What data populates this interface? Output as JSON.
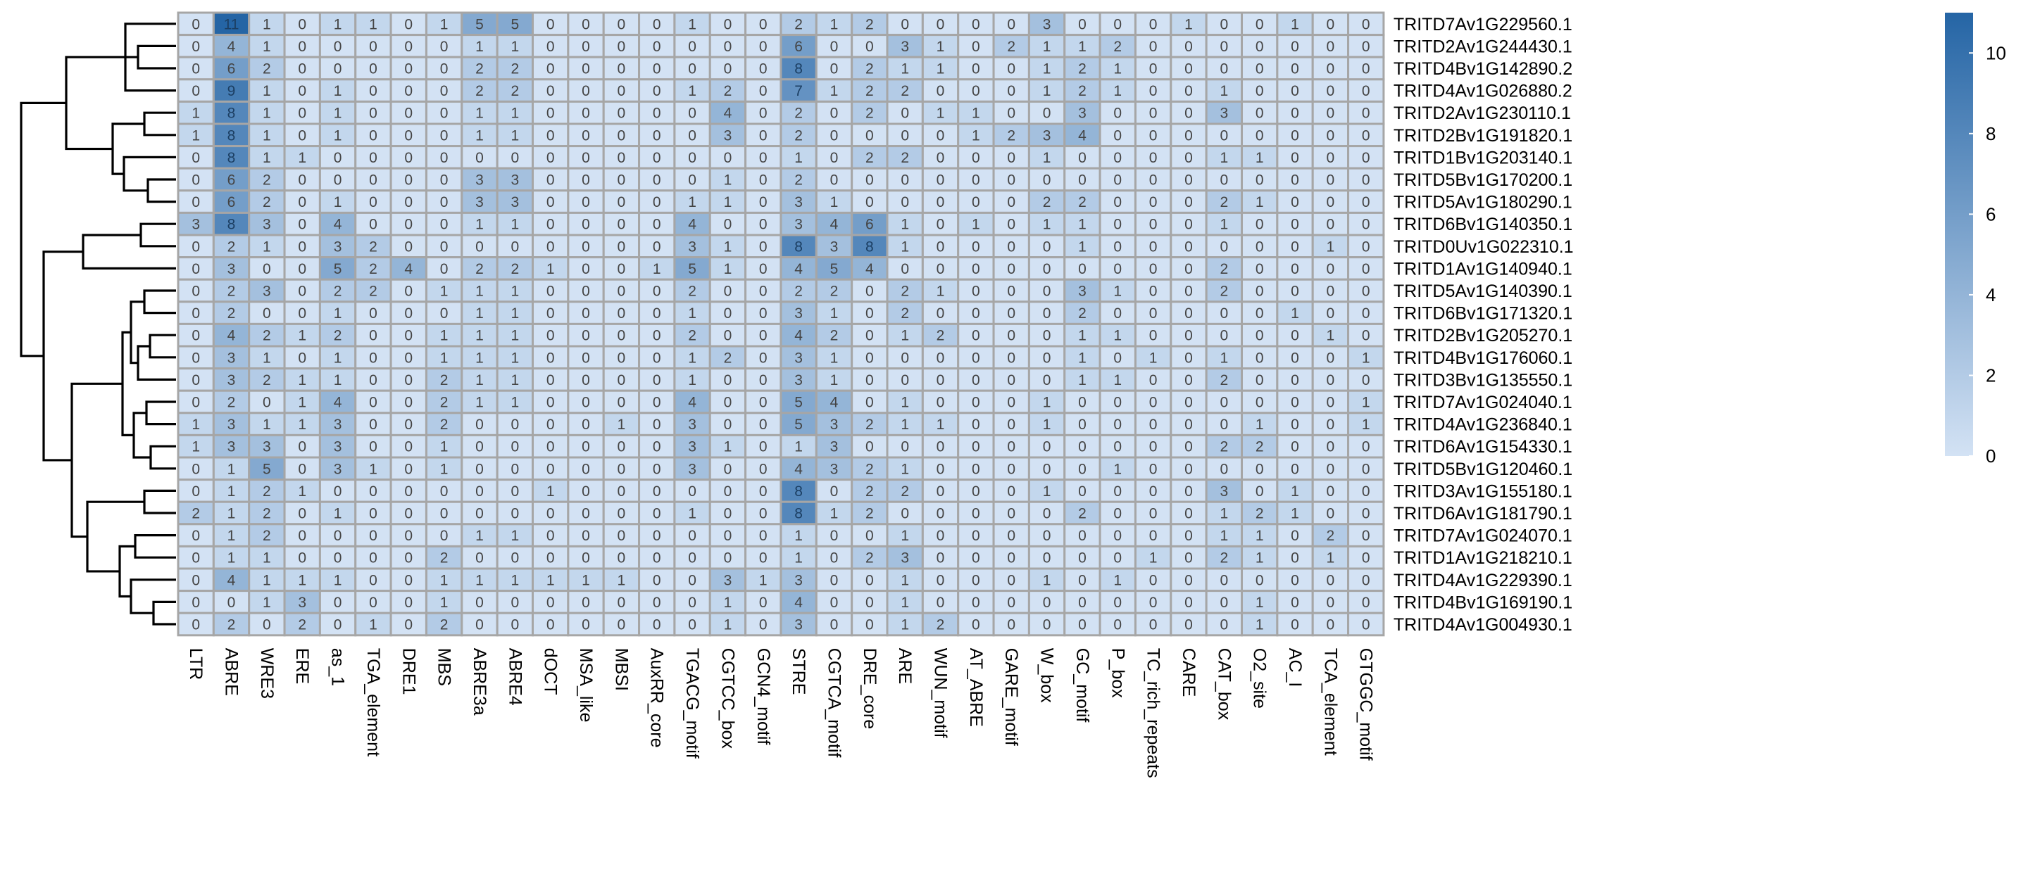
{
  "chart_data": {
    "type": "heatmap",
    "columns": [
      "LTR",
      "ABRE",
      "WRE3",
      "ERE",
      "as_1",
      "TGA_element",
      "DRE1",
      "MBS",
      "ABRE3a",
      "ABRE4",
      "dOCT",
      "MSA_like",
      "MBSI",
      "AuxRR_core",
      "TGACG_motif",
      "CGTCC_box",
      "GCN4_motif",
      "STRE",
      "CGTCA_motif",
      "DRE_core",
      "ARE",
      "WUN_motif",
      "AT_ABRE",
      "GARE_motif",
      "W_box",
      "GC_motif",
      "P_box",
      "TC_rich_repeats",
      "CARE",
      "CAT_box",
      "O2_site",
      "AC_I",
      "TCA_element",
      "GTGGC_motif"
    ],
    "rows": [
      {
        "gene": "TRITD7Av1G229560.1",
        "values": [
          0,
          11,
          1,
          0,
          1,
          1,
          0,
          1,
          5,
          5,
          0,
          0,
          0,
          0,
          1,
          0,
          0,
          2,
          1,
          2,
          0,
          0,
          0,
          0,
          3,
          0,
          0,
          0,
          1,
          0,
          0,
          1,
          0,
          0
        ]
      },
      {
        "gene": "TRITD2Av1G244430.1",
        "values": [
          0,
          4,
          1,
          0,
          0,
          0,
          0,
          0,
          1,
          1,
          0,
          0,
          0,
          0,
          0,
          0,
          0,
          6,
          0,
          0,
          3,
          1,
          0,
          2,
          1,
          1,
          2,
          0,
          0,
          0,
          0,
          0,
          0,
          0
        ]
      },
      {
        "gene": "TRITD4Bv1G142890.2",
        "values": [
          0,
          6,
          2,
          0,
          0,
          0,
          0,
          0,
          2,
          2,
          0,
          0,
          0,
          0,
          0,
          0,
          0,
          8,
          0,
          2,
          1,
          1,
          0,
          0,
          1,
          2,
          1,
          0,
          0,
          0,
          0,
          0,
          0,
          0
        ]
      },
      {
        "gene": "TRITD4Av1G026880.2",
        "values": [
          0,
          9,
          1,
          0,
          1,
          0,
          0,
          0,
          2,
          2,
          0,
          0,
          0,
          0,
          1,
          2,
          0,
          7,
          1,
          2,
          2,
          0,
          0,
          0,
          1,
          2,
          1,
          0,
          0,
          1,
          0,
          0,
          0,
          0
        ]
      },
      {
        "gene": "TRITD2Av1G230110.1",
        "values": [
          1,
          8,
          1,
          0,
          1,
          0,
          0,
          0,
          1,
          1,
          0,
          0,
          0,
          0,
          0,
          4,
          0,
          2,
          0,
          2,
          0,
          1,
          1,
          0,
          0,
          3,
          0,
          0,
          0,
          3,
          0,
          0,
          0,
          0
        ]
      },
      {
        "gene": "TRITD2Bv1G191820.1",
        "values": [
          1,
          8,
          1,
          0,
          1,
          0,
          0,
          0,
          1,
          1,
          0,
          0,
          0,
          0,
          0,
          3,
          0,
          2,
          0,
          0,
          0,
          0,
          1,
          2,
          3,
          4,
          0,
          0,
          0,
          0,
          0,
          0,
          0,
          0
        ]
      },
      {
        "gene": "TRITD1Bv1G203140.1",
        "values": [
          0,
          8,
          1,
          1,
          0,
          0,
          0,
          0,
          0,
          0,
          0,
          0,
          0,
          0,
          0,
          0,
          0,
          1,
          0,
          2,
          2,
          0,
          0,
          0,
          1,
          0,
          0,
          0,
          0,
          1,
          1,
          0,
          0,
          0
        ]
      },
      {
        "gene": "TRITD5Bv1G170200.1",
        "values": [
          0,
          6,
          2,
          0,
          0,
          0,
          0,
          0,
          3,
          3,
          0,
          0,
          0,
          0,
          0,
          1,
          0,
          2,
          0,
          0,
          0,
          0,
          0,
          0,
          0,
          0,
          0,
          0,
          0,
          0,
          0,
          0,
          0,
          0
        ]
      },
      {
        "gene": "TRITD5Av1G180290.1",
        "values": [
          0,
          6,
          2,
          0,
          1,
          0,
          0,
          0,
          3,
          3,
          0,
          0,
          0,
          0,
          1,
          1,
          0,
          3,
          1,
          0,
          0,
          0,
          0,
          0,
          2,
          2,
          0,
          0,
          0,
          2,
          1,
          0,
          0,
          0
        ]
      },
      {
        "gene": "TRITD6Bv1G140350.1",
        "values": [
          3,
          8,
          3,
          0,
          4,
          0,
          0,
          0,
          1,
          1,
          0,
          0,
          0,
          0,
          4,
          0,
          0,
          3,
          4,
          6,
          1,
          0,
          1,
          0,
          1,
          1,
          0,
          0,
          0,
          1,
          0,
          0,
          0,
          0
        ]
      },
      {
        "gene": "TRITD0Uv1G022310.1",
        "values": [
          0,
          2,
          1,
          0,
          3,
          2,
          0,
          0,
          0,
          0,
          0,
          0,
          0,
          0,
          3,
          1,
          0,
          8,
          3,
          8,
          1,
          0,
          0,
          0,
          0,
          1,
          0,
          0,
          0,
          0,
          0,
          0,
          1,
          0
        ]
      },
      {
        "gene": "TRITD1Av1G140940.1",
        "values": [
          0,
          3,
          0,
          0,
          5,
          2,
          4,
          0,
          2,
          2,
          1,
          0,
          0,
          1,
          5,
          1,
          0,
          4,
          5,
          4,
          0,
          0,
          0,
          0,
          0,
          0,
          0,
          0,
          0,
          2,
          0,
          0,
          0,
          0
        ]
      },
      {
        "gene": "TRITD5Av1G140390.1",
        "values": [
          0,
          2,
          3,
          0,
          2,
          2,
          0,
          1,
          1,
          1,
          0,
          0,
          0,
          0,
          2,
          0,
          0,
          2,
          2,
          0,
          2,
          1,
          0,
          0,
          0,
          3,
          1,
          0,
          0,
          2,
          0,
          0,
          0,
          0
        ]
      },
      {
        "gene": "TRITD6Bv1G171320.1",
        "values": [
          0,
          2,
          0,
          0,
          1,
          0,
          0,
          0,
          1,
          1,
          0,
          0,
          0,
          0,
          1,
          0,
          0,
          3,
          1,
          0,
          2,
          0,
          0,
          0,
          0,
          2,
          0,
          0,
          0,
          0,
          0,
          1,
          0,
          0
        ]
      },
      {
        "gene": "TRITD2Bv1G205270.1",
        "values": [
          0,
          4,
          2,
          1,
          2,
          0,
          0,
          1,
          1,
          1,
          0,
          0,
          0,
          0,
          2,
          0,
          0,
          4,
          2,
          0,
          1,
          2,
          0,
          0,
          0,
          1,
          1,
          0,
          0,
          0,
          0,
          0,
          1,
          0
        ]
      },
      {
        "gene": "TRITD4Bv1G176060.1",
        "values": [
          0,
          3,
          1,
          0,
          1,
          0,
          0,
          1,
          1,
          1,
          0,
          0,
          0,
          0,
          1,
          2,
          0,
          3,
          1,
          0,
          0,
          0,
          0,
          0,
          0,
          1,
          0,
          1,
          0,
          1,
          0,
          0,
          0,
          1
        ]
      },
      {
        "gene": "TRITD3Bv1G135550.1",
        "values": [
          0,
          3,
          2,
          1,
          1,
          0,
          0,
          2,
          1,
          1,
          0,
          0,
          0,
          0,
          1,
          0,
          0,
          3,
          1,
          0,
          0,
          0,
          0,
          0,
          0,
          1,
          1,
          0,
          0,
          2,
          0,
          0,
          0,
          0
        ]
      },
      {
        "gene": "TRITD7Av1G024040.1",
        "values": [
          0,
          2,
          0,
          1,
          4,
          0,
          0,
          2,
          1,
          1,
          0,
          0,
          0,
          0,
          4,
          0,
          0,
          5,
          4,
          0,
          1,
          0,
          0,
          0,
          1,
          0,
          0,
          0,
          0,
          0,
          0,
          0,
          0,
          1
        ]
      },
      {
        "gene": "TRITD4Av1G236840.1",
        "values": [
          1,
          3,
          1,
          1,
          3,
          0,
          0,
          2,
          0,
          0,
          0,
          0,
          1,
          0,
          3,
          0,
          0,
          5,
          3,
          2,
          1,
          1,
          0,
          0,
          1,
          0,
          0,
          0,
          0,
          0,
          1,
          0,
          0,
          1
        ]
      },
      {
        "gene": "TRITD6Av1G154330.1",
        "values": [
          1,
          3,
          3,
          0,
          3,
          0,
          0,
          1,
          0,
          0,
          0,
          0,
          0,
          0,
          3,
          1,
          0,
          1,
          3,
          0,
          0,
          0,
          0,
          0,
          0,
          0,
          0,
          0,
          0,
          2,
          2,
          0,
          0,
          0
        ]
      },
      {
        "gene": "TRITD5Bv1G120460.1",
        "values": [
          0,
          1,
          5,
          0,
          3,
          1,
          0,
          1,
          0,
          0,
          0,
          0,
          0,
          0,
          3,
          0,
          0,
          4,
          3,
          2,
          1,
          0,
          0,
          0,
          0,
          0,
          1,
          0,
          0,
          0,
          0,
          0,
          0,
          0
        ]
      },
      {
        "gene": "TRITD3Av1G155180.1",
        "values": [
          0,
          1,
          2,
          1,
          0,
          0,
          0,
          0,
          0,
          0,
          1,
          0,
          0,
          0,
          0,
          0,
          0,
          8,
          0,
          2,
          2,
          0,
          0,
          0,
          1,
          0,
          0,
          0,
          0,
          3,
          0,
          1,
          0,
          0
        ]
      },
      {
        "gene": "TRITD6Av1G181790.1",
        "values": [
          2,
          1,
          2,
          0,
          1,
          0,
          0,
          0,
          0,
          0,
          0,
          0,
          0,
          0,
          1,
          0,
          0,
          8,
          1,
          2,
          0,
          0,
          0,
          0,
          0,
          2,
          0,
          0,
          0,
          1,
          2,
          1,
          0,
          0
        ]
      },
      {
        "gene": "TRITD7Av1G024070.1",
        "values": [
          0,
          1,
          2,
          0,
          0,
          0,
          0,
          0,
          1,
          1,
          0,
          0,
          0,
          0,
          0,
          0,
          0,
          1,
          0,
          0,
          1,
          0,
          0,
          0,
          0,
          0,
          0,
          0,
          0,
          1,
          1,
          0,
          2,
          0
        ]
      },
      {
        "gene": "TRITD1Av1G218210.1",
        "values": [
          0,
          1,
          1,
          0,
          0,
          0,
          0,
          2,
          0,
          0,
          0,
          0,
          0,
          0,
          0,
          0,
          0,
          1,
          0,
          2,
          3,
          0,
          0,
          0,
          0,
          0,
          0,
          1,
          0,
          2,
          1,
          0,
          1,
          0
        ]
      },
      {
        "gene": "TRITD4Av1G229390.1",
        "values": [
          0,
          4,
          1,
          1,
          1,
          0,
          0,
          1,
          1,
          1,
          1,
          1,
          1,
          0,
          0,
          3,
          1,
          3,
          0,
          0,
          1,
          0,
          0,
          0,
          1,
          0,
          1,
          0,
          0,
          0,
          0,
          0,
          0,
          0
        ]
      },
      {
        "gene": "TRITD4Bv1G169190.1",
        "values": [
          0,
          0,
          1,
          3,
          0,
          0,
          0,
          1,
          0,
          0,
          0,
          0,
          0,
          0,
          0,
          1,
          0,
          4,
          0,
          0,
          1,
          0,
          0,
          0,
          0,
          0,
          0,
          0,
          0,
          0,
          1,
          0,
          0,
          0
        ]
      },
      {
        "gene": "TRITD4Av1G004930.1",
        "values": [
          0,
          2,
          0,
          2,
          0,
          1,
          0,
          2,
          0,
          0,
          0,
          0,
          0,
          0,
          0,
          1,
          0,
          3,
          0,
          0,
          1,
          2,
          0,
          0,
          0,
          0,
          0,
          0,
          0,
          0,
          1,
          0,
          0,
          0
        ]
      }
    ],
    "legend": {
      "min": 0,
      "max": 11,
      "ticks": [
        0,
        2,
        4,
        6,
        8,
        10
      ]
    },
    "colors": {
      "low": "#d3e2f4",
      "high": "#2565a5",
      "border": "#a6a6a6",
      "text": "#444444"
    },
    "row_dendrogram": "left",
    "column_labels_rotation": "vertical"
  }
}
